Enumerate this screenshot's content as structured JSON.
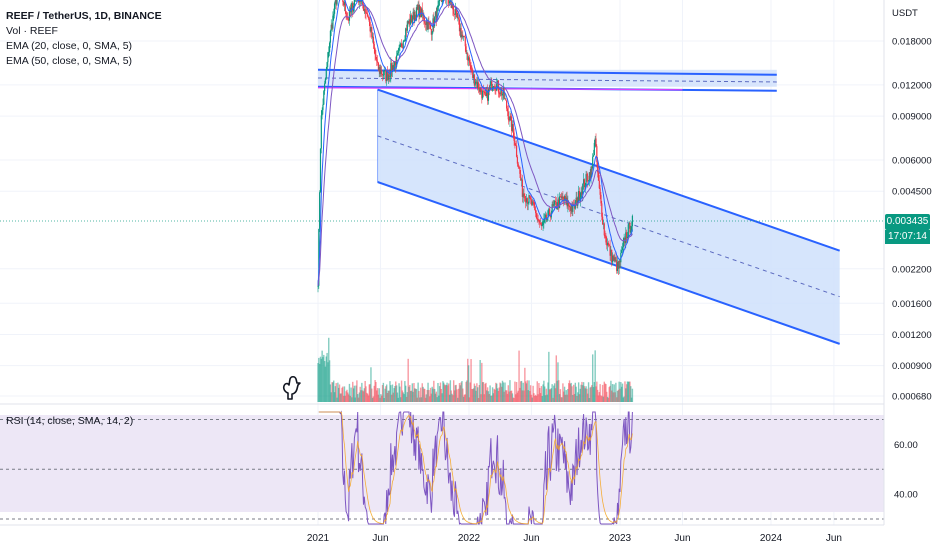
{
  "legend": {
    "title": "REEF / TetherUS, 1D, BINANCE",
    "vol": "Vol · REEF",
    "ema20": "EMA (20, close, 0, SMA, 5)",
    "ema50": "EMA (50, close, 0, SMA, 5)",
    "rsi": "RSI (14, close, SMA, 14, 2)"
  },
  "currency": "USDT",
  "last_price": "0.003435",
  "countdown": "17:07:14",
  "colors": {
    "up": "#089981",
    "down": "#f23645",
    "ema20": "#2962ff",
    "ema50": "#7e57c2",
    "channel": "#2962ff",
    "channel_fill": "#cfe0fb",
    "rsi_line": "#7e57c2",
    "rsi_ma": "#f5a623",
    "rsi_band": "#ede7f6"
  },
  "chart_data": {
    "type": "candlestick",
    "symbol": "REEF / TetherUS",
    "interval": "1D",
    "exchange": "BINANCE",
    "price_axis": {
      "scale": "log",
      "ticks": [
        "0.018000",
        "0.012000",
        "0.009000",
        "0.006000",
        "0.004500",
        "0.003435",
        "0.002200",
        "0.001600",
        "0.001200",
        "0.000900",
        "0.000680"
      ]
    },
    "time_axis": {
      "ticks": [
        "2021",
        "Jun",
        "2022",
        "Jun",
        "2023",
        "Jun",
        "2024",
        "Jun"
      ]
    },
    "close_path": [
      [
        "2021-01-01",
        0.002
      ],
      [
        "2021-01-08",
        0.0085
      ],
      [
        "2021-01-15",
        0.011
      ],
      [
        "2021-02-01",
        0.02
      ],
      [
        "2021-02-20",
        0.03
      ],
      [
        "2021-03-15",
        0.022
      ],
      [
        "2021-04-05",
        0.028
      ],
      [
        "2021-05-01",
        0.023
      ],
      [
        "2021-05-25",
        0.014
      ],
      [
        "2021-06-15",
        0.013
      ],
      [
        "2021-07-10",
        0.015
      ],
      [
        "2021-08-05",
        0.021
      ],
      [
        "2021-09-01",
        0.024
      ],
      [
        "2021-10-01",
        0.02
      ],
      [
        "2021-11-01",
        0.028
      ],
      [
        "2021-11-25",
        0.024
      ],
      [
        "2021-12-20",
        0.018
      ],
      [
        "2022-01-10",
        0.013
      ],
      [
        "2022-02-10",
        0.0105
      ],
      [
        "2022-03-01",
        0.0125
      ],
      [
        "2022-03-25",
        0.011
      ],
      [
        "2022-04-20",
        0.0075
      ],
      [
        "2022-05-10",
        0.0045
      ],
      [
        "2022-06-01",
        0.004
      ],
      [
        "2022-06-25",
        0.0032
      ],
      [
        "2022-07-20",
        0.0038
      ],
      [
        "2022-08-15",
        0.0042
      ],
      [
        "2022-09-10",
        0.0038
      ],
      [
        "2022-10-05",
        0.0048
      ],
      [
        "2022-10-25",
        0.0055
      ],
      [
        "2022-11-01",
        0.0075
      ],
      [
        "2022-11-10",
        0.0048
      ],
      [
        "2022-11-25",
        0.003
      ],
      [
        "2022-12-10",
        0.0025
      ],
      [
        "2022-12-28",
        0.0022
      ],
      [
        "2023-01-15",
        0.003
      ],
      [
        "2023-02-01",
        0.003435
      ]
    ],
    "rsi": {
      "period": 14,
      "levels": [
        70,
        50,
        30
      ],
      "axis_ticks": [
        "60.00",
        "40.00"
      ],
      "range": [
        28,
        73
      ]
    },
    "drawings": {
      "horizontal_channel": {
        "from": "2021-01-01",
        "to": "2024-01-15",
        "top": 0.0138,
        "bottom": 0.0118,
        "mid": 0.0128
      },
      "descending_channel": {
        "start": "2021-05-25",
        "end": "2024-06-15",
        "upper": [
          0.0115,
          0.0026
        ],
        "mid": [
          0.0075,
          0.0017
        ],
        "lower": [
          0.0049,
          0.0011
        ]
      }
    }
  }
}
